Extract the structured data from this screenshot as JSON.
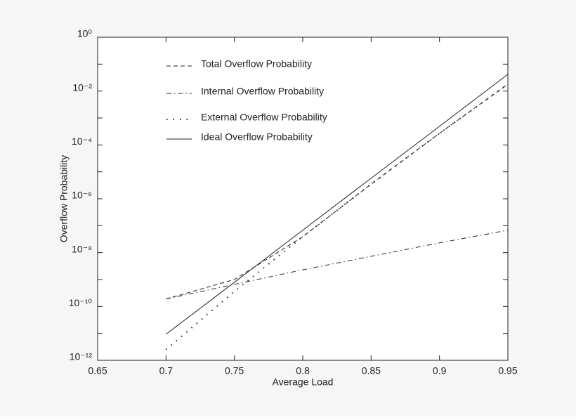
{
  "chart_data": {
    "type": "line",
    "xlabel": "Average Load",
    "ylabel": "Overflow Probability",
    "x": [
      0.7,
      0.75,
      0.8,
      0.85,
      0.9,
      0.95
    ],
    "xlim": [
      0.65,
      0.95
    ],
    "xticks": [
      0.65,
      0.7,
      0.75,
      0.8,
      0.85,
      0.9,
      0.95
    ],
    "ylim": [
      1e-12,
      1
    ],
    "ylog": true,
    "yticks": [
      {
        "value": 1e-12,
        "label": "10⁻¹²"
      },
      {
        "value": 1e-10,
        "label": "10⁻¹⁰"
      },
      {
        "value": 1e-08,
        "label": "10⁻⁸"
      },
      {
        "value": 1e-06,
        "label": "10⁻⁶"
      },
      {
        "value": 0.0001,
        "label": "10⁻⁴"
      },
      {
        "value": 0.01,
        "label": "10⁻²"
      },
      {
        "value": 1,
        "label": "10⁰"
      }
    ],
    "yminor_ticks": [
      1e-11,
      1e-09,
      1e-07,
      1e-05,
      0.001,
      0.1
    ],
    "legend": "upper left",
    "series": [
      {
        "name": "Total Overflow Probability",
        "color": "#222222",
        "style": "dashed",
        "values": [
          1.9e-10,
          1e-09,
          3.9e-08,
          3.5e-06,
          0.00027,
          0.018
        ]
      },
      {
        "name": "Internal Overflow Probability",
        "color": "#222222",
        "style": "dashdot",
        "values": [
          1.9e-10,
          6.6e-10,
          2.3e-09,
          7.3e-09,
          2.3e-08,
          6.8e-08
        ]
      },
      {
        "name": "External Overflow Probability",
        "color": "#222222",
        "style": "dotted",
        "values": [
          2.5e-12,
          3.6e-10,
          3.9e-08,
          3.5e-06,
          0.00027,
          0.018
        ]
      },
      {
        "name": "Ideal Overflow Probability",
        "color": "#222222",
        "style": "solid",
        "values": [
          9.3e-12,
          7.9e-10,
          6.8e-08,
          5.8e-06,
          0.00049,
          0.042
        ]
      }
    ]
  }
}
